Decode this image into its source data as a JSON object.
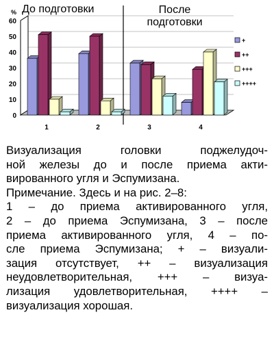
{
  "chart_data": {
    "type": "bar",
    "ylabel": "%",
    "ylim": [
      0,
      60
    ],
    "yticks": [
      0,
      10,
      20,
      30,
      40,
      50,
      60
    ],
    "categories": [
      "1",
      "2",
      "3",
      "4"
    ],
    "group_labels": {
      "before": "До подготовки",
      "after_line1": "После",
      "after_line2": "подготовки"
    },
    "series": [
      {
        "name": "+",
        "color": "#9999dd",
        "values": [
          36,
          39,
          33,
          8
        ]
      },
      {
        "name": "++",
        "color": "#993366",
        "values": [
          51,
          50,
          32,
          29
        ]
      },
      {
        "name": "+++",
        "color": "#ffffcc",
        "values": [
          10,
          9,
          23,
          40
        ]
      },
      {
        "name": "++++",
        "color": "#ccffff",
        "values": [
          2,
          2,
          12,
          21
        ]
      }
    ],
    "style": "3d-bars",
    "legend": "right"
  },
  "caption": [
    "Визуализация головки поджелудоч-",
    "ной железы до и после приема акти-",
    "вированного угля и Эспумизана.",
    "Примечание. Здесь и на рис. 2–8:",
    "1 – до приема активированного угля,",
    "2 – до приема Эспумизана, 3 – после",
    "приема активированного угля, 4 – по-",
    "сле приема Эспумизана; + – визуали-",
    "зация отсутствует, ++ – визуализация",
    "неудовлетворительная, +++ – визуа-",
    "лизация удовлетворительная, ++++ –",
    "визуализация хорошая."
  ]
}
